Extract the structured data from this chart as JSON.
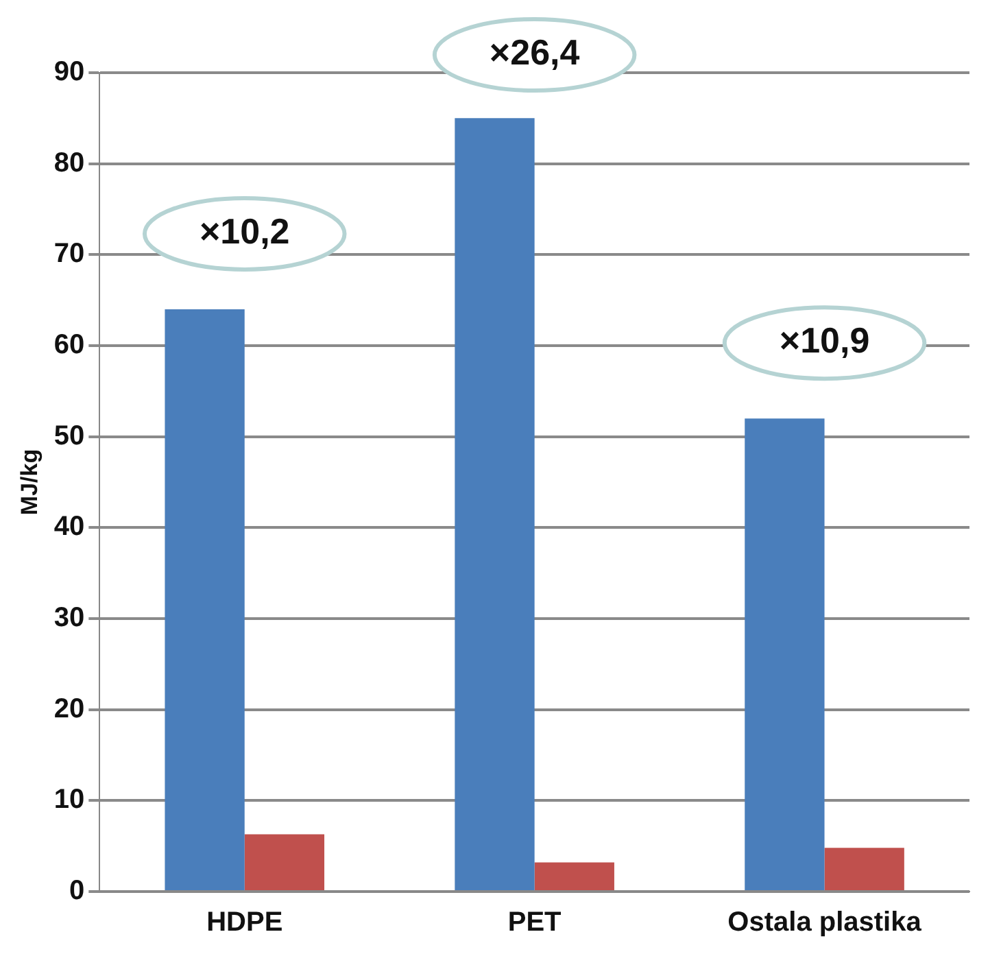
{
  "chart_data": {
    "type": "bar",
    "ylabel": "MJ/kg",
    "categories": [
      "HDPE",
      "PET",
      "Ostala plastika"
    ],
    "series": [
      {
        "color": "#4a7ebb",
        "values": [
          64,
          85,
          52
        ]
      },
      {
        "color": "#c0504d",
        "values": [
          6.3,
          3.2,
          4.8
        ]
      }
    ],
    "ylim": [
      0,
      90
    ],
    "yticks": [
      0,
      10,
      20,
      30,
      40,
      50,
      60,
      70,
      80,
      90
    ],
    "grid": "y",
    "legend": false,
    "annotations": [
      "×10,2",
      "×26,4",
      "×10,9"
    ]
  }
}
